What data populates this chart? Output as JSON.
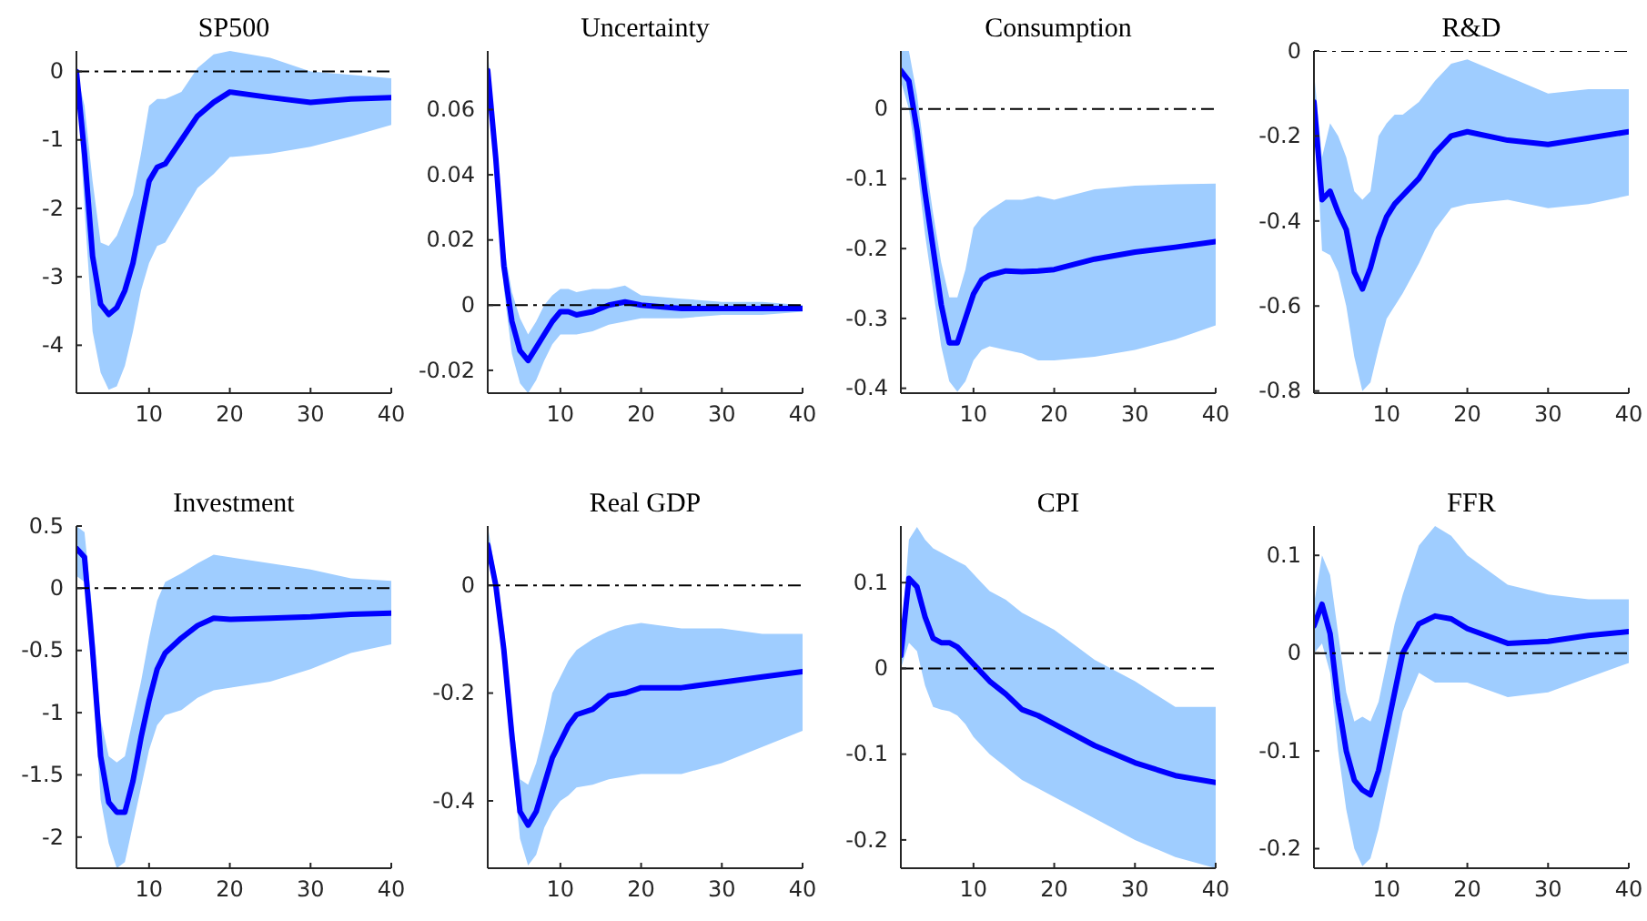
{
  "chart_data": [
    {
      "type": "line",
      "title": "SP500",
      "x": [
        1,
        2,
        3,
        4,
        5,
        6,
        7,
        8,
        9,
        10,
        11,
        12,
        14,
        16,
        18,
        20,
        25,
        30,
        35,
        40
      ],
      "xlim": [
        1,
        40
      ],
      "xticks": [
        10,
        20,
        30,
        40
      ],
      "ylim": [
        -4.7,
        0.3
      ],
      "yticks": [
        -4,
        -3,
        -2,
        -1,
        0
      ],
      "ref_lines": [
        {
          "axis": "y",
          "value": 0,
          "color": "#000000"
        }
      ],
      "series": [
        {
          "color": "#0000ff",
          "values": [
            0,
            -1.2,
            -2.7,
            -3.4,
            -3.55,
            -3.45,
            -3.2,
            -2.8,
            -2.2,
            -1.6,
            -1.4,
            -1.35,
            -1.0,
            -0.65,
            -0.45,
            -0.3,
            -0.38,
            -0.45,
            -0.4,
            -0.38
          ],
          "lower": [
            0,
            -2.0,
            -3.8,
            -4.4,
            -4.65,
            -4.6,
            -4.3,
            -3.8,
            -3.2,
            -2.8,
            -2.55,
            -2.5,
            -2.1,
            -1.7,
            -1.5,
            -1.25,
            -1.2,
            -1.1,
            -0.95,
            -0.78
          ],
          "upper": [
            0,
            -0.5,
            -1.6,
            -2.5,
            -2.55,
            -2.4,
            -2.1,
            -1.8,
            -1.2,
            -0.5,
            -0.4,
            -0.4,
            -0.3,
            0.05,
            0.25,
            0.3,
            0.2,
            0.0,
            -0.05,
            -0.1
          ]
        }
      ]
    },
    {
      "type": "line",
      "title": "Uncertainty",
      "x": [
        1,
        2,
        3,
        4,
        5,
        6,
        7,
        8,
        9,
        10,
        11,
        12,
        14,
        16,
        18,
        20,
        25,
        30,
        35,
        40
      ],
      "xlim": [
        1,
        40
      ],
      "xticks": [
        10,
        20,
        30,
        40
      ],
      "ylim": [
        -0.027,
        0.078
      ],
      "yticks": [
        -0.02,
        0,
        0.02,
        0.04,
        0.06
      ],
      "ref_lines": [
        {
          "axis": "y",
          "value": 0,
          "color": "#000000"
        }
      ],
      "series": [
        {
          "color": "#0000ff",
          "values": [
            0.072,
            0.045,
            0.012,
            -0.005,
            -0.014,
            -0.017,
            -0.013,
            -0.009,
            -0.005,
            -0.002,
            -0.002,
            -0.003,
            -0.002,
            0.0,
            0.001,
            0.0,
            -0.001,
            -0.001,
            -0.001,
            -0.001
          ],
          "lower": [
            0.072,
            0.04,
            0.005,
            -0.015,
            -0.024,
            -0.027,
            -0.023,
            -0.017,
            -0.012,
            -0.009,
            -0.009,
            -0.009,
            -0.008,
            -0.006,
            -0.005,
            -0.004,
            -0.004,
            -0.003,
            -0.003,
            -0.002
          ],
          "upper": [
            0.078,
            0.05,
            0.018,
            0.004,
            -0.004,
            -0.009,
            -0.005,
            0.0,
            0.003,
            0.005,
            0.005,
            0.004,
            0.005,
            0.005,
            0.006,
            0.003,
            0.002,
            0.001,
            0.001,
            0.0
          ]
        }
      ]
    },
    {
      "type": "line",
      "title": "Consumption",
      "x": [
        1,
        2,
        3,
        4,
        5,
        6,
        7,
        8,
        9,
        10,
        11,
        12,
        14,
        16,
        18,
        20,
        25,
        30,
        35,
        40
      ],
      "xlim": [
        1,
        40
      ],
      "xticks": [
        10,
        20,
        30,
        40
      ],
      "ylim": [
        -0.407,
        0.083
      ],
      "yticks": [
        -0.4,
        -0.3,
        -0.2,
        -0.1,
        0
      ],
      "ref_lines": [
        {
          "axis": "y",
          "value": 0,
          "color": "#000000"
        }
      ],
      "series": [
        {
          "color": "#0000ff",
          "values": [
            0.055,
            0.04,
            -0.03,
            -0.12,
            -0.2,
            -0.28,
            -0.335,
            -0.335,
            -0.3,
            -0.265,
            -0.245,
            -0.238,
            -0.232,
            -0.233,
            -0.232,
            -0.23,
            -0.215,
            -0.205,
            -0.198,
            -0.19
          ],
          "lower": [
            0.04,
            0.0,
            -0.08,
            -0.18,
            -0.26,
            -0.34,
            -0.39,
            -0.405,
            -0.39,
            -0.36,
            -0.345,
            -0.34,
            -0.345,
            -0.35,
            -0.36,
            -0.36,
            -0.355,
            -0.345,
            -0.33,
            -0.31
          ],
          "upper": [
            0.083,
            0.083,
            0.02,
            -0.07,
            -0.15,
            -0.22,
            -0.27,
            -0.27,
            -0.23,
            -0.17,
            -0.155,
            -0.145,
            -0.13,
            -0.13,
            -0.125,
            -0.13,
            -0.115,
            -0.11,
            -0.108,
            -0.107
          ]
        }
      ]
    },
    {
      "type": "line",
      "title": "R&D",
      "x": [
        1,
        2,
        3,
        4,
        5,
        6,
        7,
        8,
        9,
        10,
        11,
        12,
        14,
        16,
        18,
        20,
        25,
        30,
        35,
        40
      ],
      "xlim": [
        1,
        40
      ],
      "xticks": [
        10,
        20,
        30,
        40
      ],
      "ylim": [
        -0.805,
        0
      ],
      "yticks": [
        -0.8,
        -0.6,
        -0.4,
        -0.2,
        0
      ],
      "ref_lines": [
        {
          "axis": "y",
          "value": 0,
          "color": "#000000"
        }
      ],
      "series": [
        {
          "color": "#0000ff",
          "values": [
            -0.12,
            -0.35,
            -0.33,
            -0.38,
            -0.42,
            -0.52,
            -0.56,
            -0.51,
            -0.44,
            -0.39,
            -0.36,
            -0.34,
            -0.3,
            -0.24,
            -0.2,
            -0.19,
            -0.21,
            -0.22,
            -0.205,
            -0.19
          ],
          "lower": [
            -0.1,
            -0.47,
            -0.48,
            -0.52,
            -0.6,
            -0.72,
            -0.8,
            -0.78,
            -0.7,
            -0.63,
            -0.6,
            -0.57,
            -0.5,
            -0.42,
            -0.37,
            -0.36,
            -0.35,
            -0.37,
            -0.36,
            -0.34
          ],
          "upper": [
            -0.05,
            -0.25,
            -0.17,
            -0.2,
            -0.25,
            -0.33,
            -0.35,
            -0.33,
            -0.2,
            -0.17,
            -0.15,
            -0.15,
            -0.12,
            -0.07,
            -0.03,
            -0.02,
            -0.06,
            -0.1,
            -0.09,
            -0.09
          ]
        }
      ]
    },
    {
      "type": "line",
      "title": "Investment",
      "x": [
        1,
        2,
        3,
        4,
        5,
        6,
        7,
        8,
        9,
        10,
        11,
        12,
        14,
        16,
        18,
        20,
        25,
        30,
        35,
        40
      ],
      "xlim": [
        1,
        40
      ],
      "xticks": [
        10,
        20,
        30,
        40
      ],
      "ylim": [
        -2.25,
        0.5
      ],
      "yticks": [
        -2,
        -1.5,
        -1,
        -0.5,
        0,
        0.5
      ],
      "ref_lines": [
        {
          "axis": "y",
          "value": 0,
          "color": "#000000"
        }
      ],
      "series": [
        {
          "color": "#0000ff",
          "values": [
            0.32,
            0.25,
            -0.5,
            -1.35,
            -1.72,
            -1.8,
            -1.8,
            -1.55,
            -1.2,
            -0.9,
            -0.65,
            -0.52,
            -0.4,
            -0.3,
            -0.24,
            -0.25,
            -0.24,
            -0.23,
            -0.21,
            -0.2
          ],
          "lower": [
            0.1,
            0.05,
            -0.7,
            -1.7,
            -2.05,
            -2.25,
            -2.2,
            -1.9,
            -1.6,
            -1.3,
            -1.1,
            -1.02,
            -0.98,
            -0.88,
            -0.82,
            -0.8,
            -0.75,
            -0.65,
            -0.52,
            -0.45
          ],
          "upper": [
            0.5,
            0.45,
            -0.2,
            -1.05,
            -1.35,
            -1.4,
            -1.35,
            -1.05,
            -0.75,
            -0.4,
            -0.1,
            0.05,
            0.12,
            0.2,
            0.27,
            0.25,
            0.2,
            0.15,
            0.08,
            0.06
          ]
        }
      ]
    },
    {
      "type": "line",
      "title": "Real GDP",
      "x": [
        1,
        2,
        3,
        4,
        5,
        6,
        7,
        8,
        9,
        10,
        11,
        12,
        14,
        16,
        18,
        20,
        25,
        30,
        35,
        40
      ],
      "xlim": [
        1,
        40
      ],
      "xticks": [
        10,
        20,
        30,
        40
      ],
      "ylim": [
        -0.525,
        0.11
      ],
      "yticks": [
        -0.4,
        -0.2,
        0
      ],
      "ref_lines": [
        {
          "axis": "y",
          "value": 0,
          "color": "#000000"
        }
      ],
      "series": [
        {
          "color": "#0000ff",
          "values": [
            0.075,
            0.0,
            -0.12,
            -0.28,
            -0.42,
            -0.445,
            -0.42,
            -0.37,
            -0.32,
            -0.29,
            -0.26,
            -0.24,
            -0.23,
            -0.205,
            -0.2,
            -0.19,
            -0.19,
            -0.18,
            -0.17,
            -0.16
          ],
          "lower": [
            0.06,
            -0.02,
            -0.15,
            -0.32,
            -0.47,
            -0.52,
            -0.5,
            -0.45,
            -0.42,
            -0.4,
            -0.39,
            -0.375,
            -0.37,
            -0.36,
            -0.355,
            -0.35,
            -0.35,
            -0.33,
            -0.3,
            -0.27
          ],
          "upper": [
            0.11,
            0.02,
            -0.08,
            -0.24,
            -0.36,
            -0.37,
            -0.33,
            -0.27,
            -0.2,
            -0.17,
            -0.14,
            -0.12,
            -0.1,
            -0.085,
            -0.075,
            -0.07,
            -0.08,
            -0.08,
            -0.09,
            -0.09
          ]
        }
      ]
    },
    {
      "type": "line",
      "title": "CPI",
      "x": [
        1,
        2,
        3,
        4,
        5,
        6,
        7,
        8,
        9,
        10,
        11,
        12,
        14,
        16,
        18,
        20,
        25,
        30,
        35,
        40
      ],
      "xlim": [
        1,
        40
      ],
      "xticks": [
        10,
        20,
        30,
        40
      ],
      "ylim": [
        -0.233,
        0.166
      ],
      "yticks": [
        -0.2,
        -0.1,
        0,
        0.1
      ],
      "ref_lines": [
        {
          "axis": "y",
          "value": 0,
          "color": "#000000"
        }
      ],
      "series": [
        {
          "color": "#0000ff",
          "values": [
            0.015,
            0.105,
            0.095,
            0.06,
            0.035,
            0.03,
            0.03,
            0.025,
            0.015,
            0.005,
            -0.005,
            -0.015,
            -0.03,
            -0.048,
            -0.055,
            -0.065,
            -0.09,
            -0.11,
            -0.125,
            -0.133
          ],
          "lower": [
            0.0,
            0.03,
            0.02,
            -0.02,
            -0.045,
            -0.048,
            -0.05,
            -0.055,
            -0.065,
            -0.08,
            -0.09,
            -0.1,
            -0.115,
            -0.13,
            -0.14,
            -0.15,
            -0.175,
            -0.2,
            -0.22,
            -0.233
          ],
          "upper": [
            0.03,
            0.15,
            0.165,
            0.15,
            0.14,
            0.135,
            0.13,
            0.125,
            0.12,
            0.11,
            0.1,
            0.09,
            0.08,
            0.065,
            0.055,
            0.045,
            0.01,
            -0.015,
            -0.045,
            -0.045
          ]
        }
      ]
    },
    {
      "type": "line",
      "title": "FFR",
      "x": [
        1,
        2,
        3,
        4,
        5,
        6,
        7,
        8,
        9,
        10,
        11,
        12,
        14,
        16,
        18,
        20,
        25,
        30,
        35,
        40
      ],
      "xlim": [
        1,
        40
      ],
      "xticks": [
        10,
        20,
        30,
        40
      ],
      "ylim": [
        -0.22,
        0.13
      ],
      "yticks": [
        -0.2,
        -0.1,
        0,
        0.1
      ],
      "ref_lines": [
        {
          "axis": "y",
          "value": 0,
          "color": "#000000"
        }
      ],
      "series": [
        {
          "color": "#0000ff",
          "values": [
            0.028,
            0.05,
            0.02,
            -0.05,
            -0.1,
            -0.13,
            -0.14,
            -0.145,
            -0.12,
            -0.08,
            -0.04,
            0.0,
            0.03,
            0.038,
            0.035,
            0.025,
            0.01,
            0.012,
            0.018,
            0.022
          ],
          "lower": [
            0.0,
            0.01,
            -0.02,
            -0.1,
            -0.16,
            -0.2,
            -0.218,
            -0.21,
            -0.18,
            -0.14,
            -0.1,
            -0.06,
            -0.02,
            -0.03,
            -0.03,
            -0.03,
            -0.045,
            -0.04,
            -0.025,
            -0.01
          ],
          "upper": [
            0.05,
            0.1,
            0.08,
            0.02,
            -0.04,
            -0.07,
            -0.065,
            -0.07,
            -0.05,
            -0.01,
            0.03,
            0.06,
            0.11,
            0.13,
            0.12,
            0.1,
            0.07,
            0.06,
            0.055,
            0.055
          ]
        }
      ]
    }
  ]
}
